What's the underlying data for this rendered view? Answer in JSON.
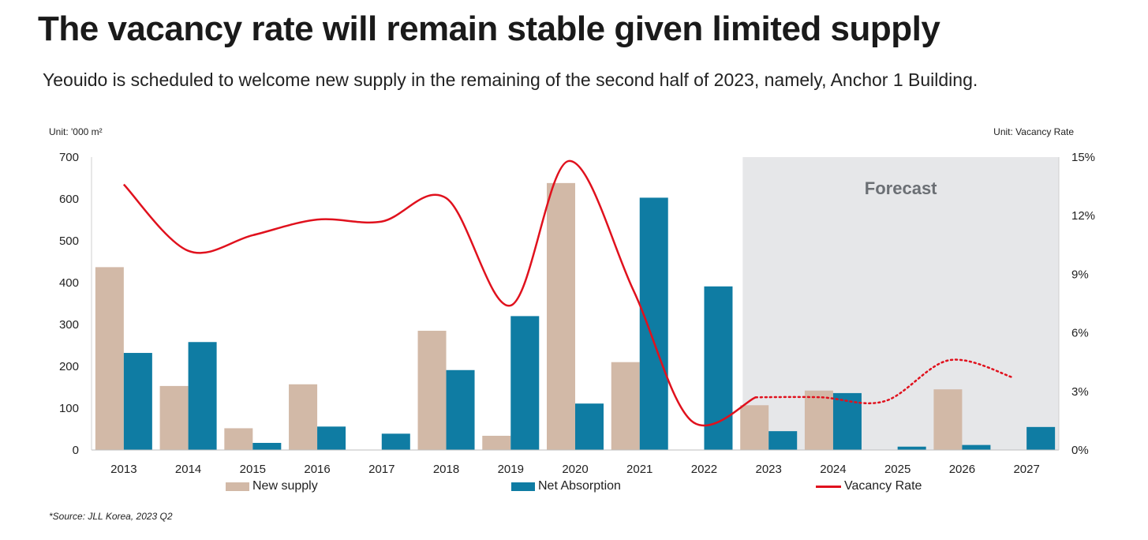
{
  "title": "The vacancy rate will remain stable given limited supply",
  "subtitle": "Yeouido is scheduled to welcome new supply in the remaining of the second half of 2023, namely, Anchor 1 Building.",
  "unit_left": "Unit: '000 m²",
  "unit_right": "Unit: Vacancy Rate",
  "source": "*Source: JLL Korea, 2023 Q2",
  "forecast_label": "Forecast",
  "colors": {
    "new_supply": "#d2b9a7",
    "net_absorption": "#0f7ca3",
    "vacancy": "#e0111d",
    "forecast_bg": "#e6e7e9"
  },
  "legend": {
    "new_supply": "New supply",
    "net_absorption": "Net Absorption",
    "vacancy": "Vacancy Rate"
  },
  "chart_data": {
    "type": "bar",
    "categories": [
      "2013",
      "2014",
      "2015",
      "2016",
      "2017",
      "2018",
      "2019",
      "2020",
      "2021",
      "2022",
      "2023",
      "2024",
      "2025",
      "2026",
      "2027"
    ],
    "series": [
      {
        "name": "New supply",
        "axis": "left",
        "values": [
          437,
          153,
          52,
          157,
          0,
          285,
          34,
          638,
          210,
          0,
          107,
          142,
          0,
          145,
          0
        ]
      },
      {
        "name": "Net Absorption",
        "axis": "left",
        "values": [
          232,
          258,
          17,
          56,
          39,
          191,
          320,
          111,
          603,
          391,
          45,
          136,
          8,
          12,
          55
        ]
      },
      {
        "name": "Vacancy Rate",
        "axis": "right",
        "type": "line",
        "unit": "%",
        "x": [
          2013.0,
          2014.0,
          2015.0,
          2016.0,
          2017.0,
          2018.0,
          2019.0,
          2019.9,
          2020.9,
          2021.8,
          2022.8,
          2023.8,
          2024.8,
          2025.8,
          2026.8
        ],
        "values": [
          13.6,
          10.2,
          11.0,
          11.8,
          11.7,
          12.9,
          7.4,
          14.8,
          8.2,
          1.5,
          2.7,
          2.7,
          2.5,
          4.6,
          3.7
        ],
        "forecast_from_index": 10
      }
    ],
    "y_left": {
      "ylim": [
        0,
        700
      ],
      "ticks": [
        "0",
        "100",
        "200",
        "300",
        "400",
        "500",
        "600",
        "700"
      ]
    },
    "y_right": {
      "ylim": [
        0,
        15
      ],
      "ticks": [
        "0%",
        "3%",
        "6%",
        "9%",
        "12%",
        "15%"
      ]
    },
    "forecast_categories": [
      "2023",
      "2024",
      "2025",
      "2026",
      "2027"
    ],
    "grid": false,
    "legend_position": "bottom"
  }
}
